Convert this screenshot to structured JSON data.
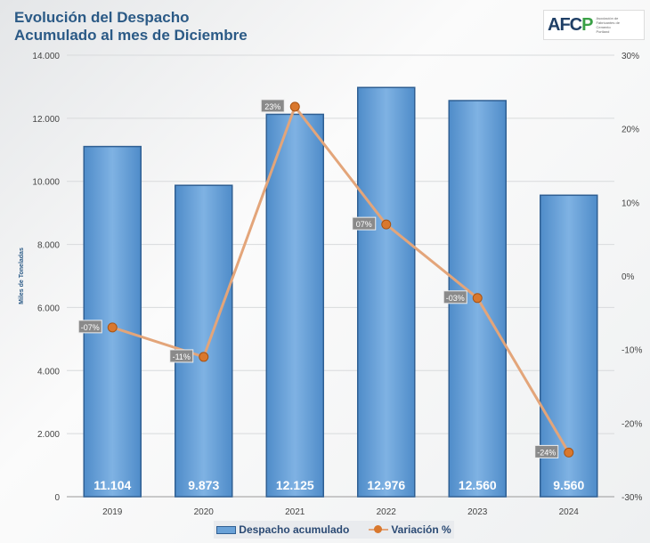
{
  "title_line1": "Evolución del Despacho",
  "title_line2": "Acumulado al mes de Diciembre",
  "logo": {
    "mark": "AFCP",
    "subtitle": "Asociación de Fabricantes de Cemento Portland"
  },
  "chart_data": {
    "type": "bar+line",
    "categories": [
      "2019",
      "2020",
      "2021",
      "2022",
      "2023",
      "2024"
    ],
    "series": [
      {
        "name": "Despacho acumulado",
        "type": "bar",
        "axis": "left",
        "values": [
          11104,
          9873,
          12125,
          12976,
          12560,
          9560
        ],
        "labels": [
          "11.104",
          "9.873",
          "12.125",
          "12.976",
          "12.560",
          "9.560"
        ],
        "color": "#5b9bd5"
      },
      {
        "name": "Variación %",
        "type": "line",
        "axis": "right",
        "values": [
          -7,
          -11,
          23,
          7,
          -3,
          -24
        ],
        "labels": [
          "-07%",
          "-11%",
          "23%",
          "07%",
          "-03%",
          "-24%"
        ],
        "color": "#e08a4a"
      }
    ],
    "ylabel": "Miles de Toneladas",
    "ylim": [
      0,
      14000
    ],
    "yticks": [
      "0",
      "2.000",
      "4.000",
      "6.000",
      "8.000",
      "10.000",
      "12.000",
      "14.000"
    ],
    "y2lim": [
      -30,
      30
    ],
    "y2ticks": [
      "-30%",
      "-20%",
      "-10%",
      "0%",
      "10%",
      "20%",
      "30%"
    ],
    "grid": true,
    "legend": "bottom"
  }
}
